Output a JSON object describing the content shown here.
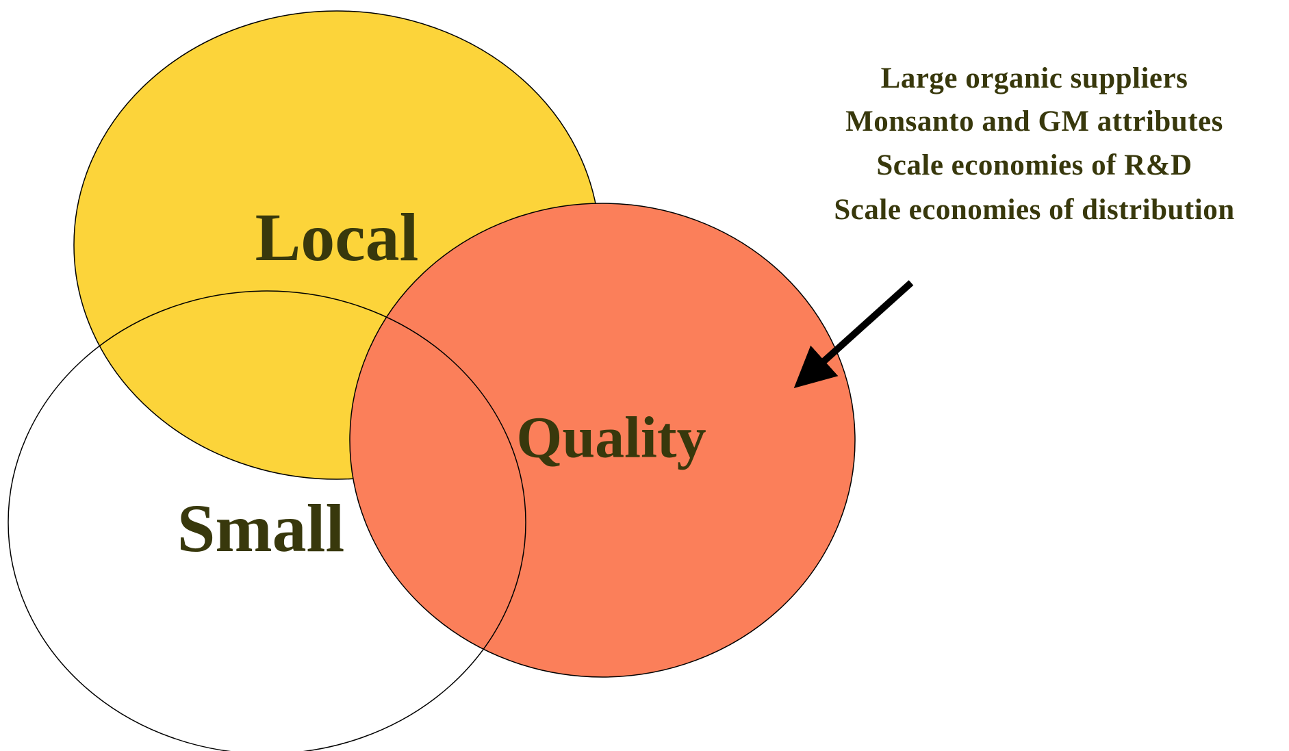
{
  "sets": [
    {
      "label": "Local"
    },
    {
      "label": "Small"
    },
    {
      "label": "Quality"
    }
  ],
  "annotation": {
    "lines": [
      "Large organic suppliers",
      "Monsanto and GM attributes",
      "Scale economies of R&D",
      "Scale economies of distribution"
    ]
  }
}
